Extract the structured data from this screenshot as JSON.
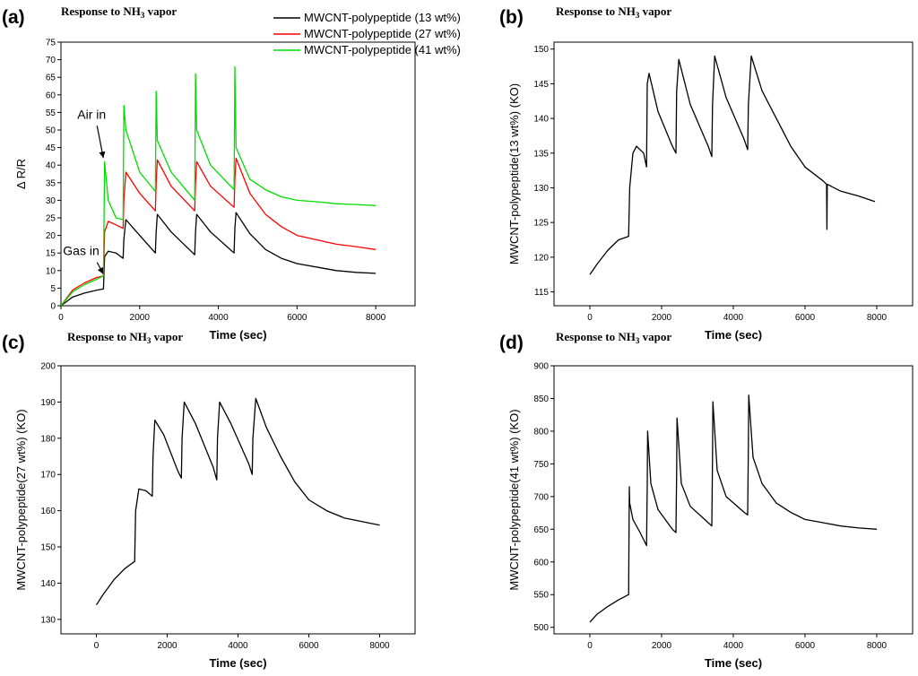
{
  "chart_data": [
    {
      "id": "a",
      "type": "line",
      "panel_label": "(a)",
      "title_main": "Response to NH",
      "title_sub": "3",
      "title_tail": " vapor",
      "xlabel": "Time (sec)",
      "ylabel": "Δ R/R",
      "xlim": [
        0,
        9000
      ],
      "ylim": [
        0,
        75
      ],
      "xticks": [
        0,
        2000,
        4000,
        6000,
        8000
      ],
      "yticks": [
        0,
        5,
        10,
        15,
        20,
        25,
        30,
        35,
        40,
        45,
        50,
        55,
        60,
        65,
        70,
        75
      ],
      "legend": "top-right",
      "annotations": [
        {
          "text": "Air in",
          "x": 1100,
          "y": 41
        },
        {
          "text": "Gas in",
          "x": 1100,
          "y": 8
        }
      ],
      "series": [
        {
          "name": "MWCNT-polypeptide (13 wt%)",
          "color": "#000000",
          "x": [
            0,
            300,
            600,
            900,
            1080,
            1110,
            1200,
            1400,
            1580,
            1600,
            1650,
            2000,
            2400,
            2420,
            2450,
            2800,
            3400,
            3420,
            3450,
            3800,
            4400,
            4420,
            4450,
            4800,
            5200,
            5600,
            6000,
            6600,
            7000,
            7500,
            8000
          ],
          "values": [
            0,
            2.5,
            3.6,
            4.4,
            4.8,
            14,
            15.5,
            15.0,
            13.5,
            19,
            24.5,
            20,
            15,
            21,
            26,
            21,
            14.5,
            21,
            26,
            21,
            15,
            22,
            26.5,
            20.5,
            16,
            13.5,
            12,
            10.8,
            10,
            9.5,
            9.2
          ]
        },
        {
          "name": "MWCNT-polypeptide (27 wt%)",
          "color": "#ff0000",
          "x": [
            0,
            300,
            600,
            900,
            1080,
            1110,
            1200,
            1400,
            1580,
            1600,
            1650,
            2000,
            2400,
            2420,
            2450,
            2800,
            3400,
            3420,
            3450,
            3800,
            4400,
            4420,
            4450,
            4800,
            5200,
            5600,
            6000,
            6600,
            7000,
            7500,
            8000
          ],
          "values": [
            0,
            4.5,
            6.5,
            8,
            8.5,
            21,
            24,
            23,
            22,
            30,
            38,
            32,
            27,
            35,
            41.5,
            34,
            27,
            35,
            41,
            34,
            28,
            36,
            42,
            32,
            26,
            22.5,
            20,
            18.5,
            17.5,
            16.8,
            16
          ]
        },
        {
          "name": "MWCNT-polypeptide (41 wt%)",
          "color": "#00dd00",
          "x": [
            0,
            300,
            600,
            900,
            1080,
            1110,
            1200,
            1400,
            1580,
            1600,
            1650,
            2000,
            2400,
            2420,
            2450,
            2800,
            3400,
            3420,
            3450,
            3800,
            4400,
            4420,
            4450,
            4800,
            5200,
            5600,
            6000,
            6600,
            7000,
            7500,
            8000
          ],
          "values": [
            0,
            4,
            6,
            7.5,
            8.5,
            41,
            30,
            25,
            24.5,
            57,
            50,
            38,
            32.5,
            61,
            47,
            38,
            30,
            66,
            50,
            40,
            33,
            68,
            45,
            36,
            33,
            31,
            30,
            29.5,
            29,
            28.8,
            28.5
          ]
        }
      ]
    },
    {
      "id": "b",
      "type": "line",
      "panel_label": "(b)",
      "title_main": "Response to NH",
      "title_sub": "3",
      "title_tail": " vapor",
      "xlabel": "Time (sec)",
      "ylabel": "MWCNT-polypeptide(13 wt%) (KO)",
      "xlim": [
        -1000,
        9000
      ],
      "ylim": [
        113,
        151
      ],
      "xticks": [
        0,
        2000,
        4000,
        6000,
        8000
      ],
      "yticks": [
        115,
        120,
        125,
        130,
        135,
        140,
        145,
        150
      ],
      "series": [
        {
          "name": "MWCNT-polypeptide (13 wt%)",
          "color": "#000000",
          "x": [
            0,
            200,
            500,
            800,
            1080,
            1110,
            1200,
            1300,
            1500,
            1580,
            1600,
            1650,
            1900,
            2300,
            2400,
            2420,
            2480,
            2800,
            3300,
            3400,
            3420,
            3480,
            3800,
            4300,
            4400,
            4420,
            4500,
            4800,
            5200,
            5600,
            6000,
            6500,
            6600,
            6610,
            6620,
            7000,
            7500,
            7950
          ],
          "values": [
            117.5,
            119,
            121,
            122.5,
            123,
            130,
            135,
            136,
            135,
            133,
            145,
            146.5,
            141,
            136,
            135,
            144,
            148.5,
            142,
            136,
            134.5,
            142,
            149,
            143,
            137,
            135.5,
            142,
            149,
            144,
            140,
            136,
            133,
            131,
            130.5,
            124,
            130.5,
            129.5,
            128.8,
            128
          ]
        }
      ]
    },
    {
      "id": "c",
      "type": "line",
      "panel_label": "(c)",
      "title_main": "Response to NH",
      "title_sub": "3",
      "title_tail": " vapor",
      "xlabel": "Time (sec)",
      "ylabel": "MWCNT-polypeptide(27 wt%) (KO)",
      "xlim": [
        -1000,
        9000
      ],
      "ylim": [
        126,
        200
      ],
      "xticks": [
        0,
        2000,
        4000,
        6000,
        8000
      ],
      "yticks": [
        130,
        140,
        150,
        160,
        170,
        180,
        190,
        200
      ],
      "series": [
        {
          "name": "MWCNT-polypeptide (27 wt%)",
          "color": "#000000",
          "x": [
            0,
            200,
            500,
            800,
            1080,
            1110,
            1200,
            1400,
            1580,
            1600,
            1650,
            1900,
            2300,
            2400,
            2420,
            2480,
            2800,
            3300,
            3400,
            3420,
            3480,
            3800,
            4300,
            4400,
            4420,
            4500,
            4800,
            5200,
            5600,
            6000,
            6500,
            7000,
            7500,
            8000
          ],
          "values": [
            134,
            137,
            141,
            144,
            146,
            160,
            166,
            165.5,
            164,
            175,
            185,
            181,
            171,
            169,
            180,
            190,
            184,
            172,
            168.5,
            180,
            190,
            184,
            173,
            170,
            180,
            191,
            183,
            175,
            168,
            163,
            160,
            158,
            157,
            156
          ]
        }
      ]
    },
    {
      "id": "d",
      "type": "line",
      "panel_label": "(d)",
      "title_main": "Response to NH",
      "title_sub": "3",
      "title_tail": " vapor",
      "xlabel": "Time (sec)",
      "ylabel": "MWCNT-polypeptide(41 wt%) (KO)",
      "xlim": [
        -1000,
        9000
      ],
      "ylim": [
        490,
        900
      ],
      "xticks": [
        0,
        2000,
        4000,
        6000,
        8000
      ],
      "yticks": [
        500,
        550,
        600,
        650,
        700,
        750,
        800,
        850,
        900
      ],
      "series": [
        {
          "name": "MWCNT-polypeptide (41 wt%)",
          "color": "#000000",
          "x": [
            0,
            200,
            500,
            800,
            1080,
            1100,
            1110,
            1200,
            1400,
            1580,
            1600,
            1610,
            1700,
            1900,
            2300,
            2400,
            2420,
            2430,
            2550,
            2800,
            3300,
            3400,
            3420,
            3430,
            3550,
            3800,
            4300,
            4400,
            4420,
            4430,
            4550,
            4800,
            5200,
            5600,
            6000,
            6500,
            7000,
            7500,
            8000
          ],
          "values": [
            508,
            520,
            532,
            542,
            550,
            715,
            690,
            665,
            645,
            625,
            720,
            800,
            720,
            680,
            650,
            645,
            740,
            820,
            720,
            685,
            660,
            655,
            760,
            845,
            740,
            700,
            676,
            672,
            780,
            855,
            760,
            720,
            690,
            676,
            665,
            660,
            655,
            652,
            650
          ]
        }
      ]
    }
  ]
}
